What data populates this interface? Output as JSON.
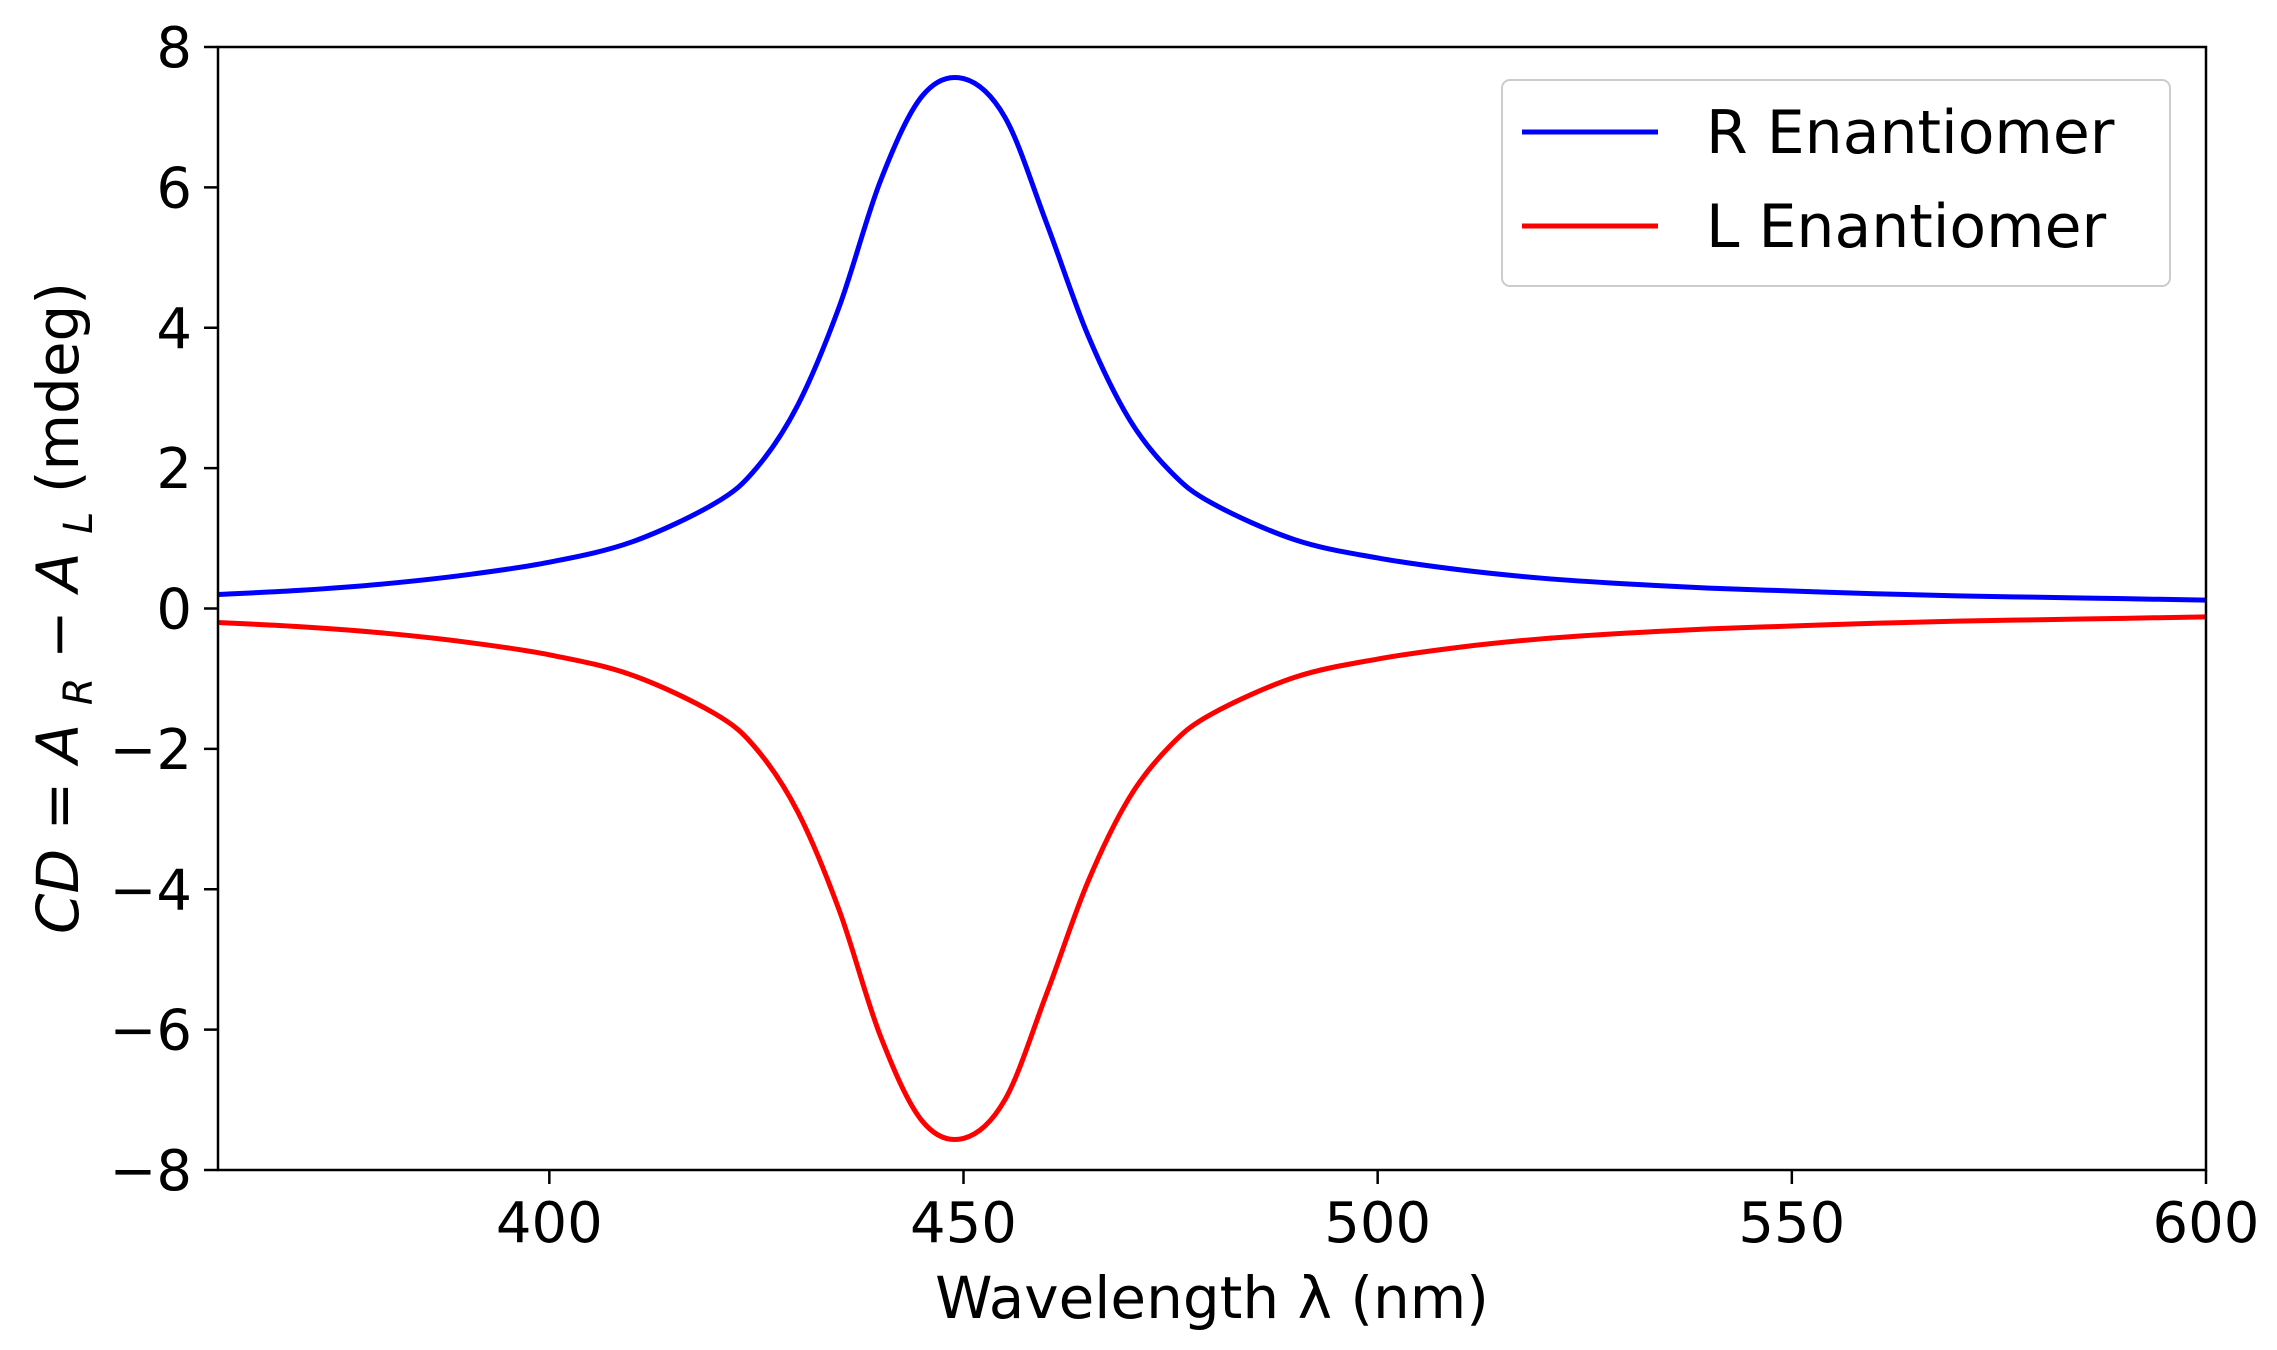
{
  "chart_data": {
    "type": "line",
    "title": "",
    "xlabel": "Wavelength λ (nm)",
    "ylabel": {
      "cd": "CD",
      "eq": " = ",
      "a1": "A",
      "sub1": "R",
      "minus": " − ",
      "a2": "A",
      "sub2": "L",
      "unit": " (mdeg)"
    },
    "xlim": [
      360,
      600
    ],
    "ylim": [
      -8,
      8
    ],
    "xticks": [
      400,
      450,
      500,
      550,
      600
    ],
    "xtick_labels": [
      "400",
      "450",
      "500",
      "550",
      "600"
    ],
    "yticks": [
      -8,
      -6,
      -4,
      -2,
      0,
      2,
      4,
      6,
      8
    ],
    "ytick_labels": [
      "−8",
      "−6",
      "−4",
      "−2",
      "0",
      "2",
      "4",
      "6",
      "8"
    ],
    "grid": false,
    "legend_position": "top-right",
    "series": [
      {
        "name": "R Enantiomer",
        "color": "#0000ff",
        "x": [
          360,
          370,
          380,
          390,
          400,
          410,
          420,
          425,
          430,
          435,
          440,
          445,
          450,
          455,
          460,
          465,
          470,
          475,
          480,
          490,
          500,
          510,
          520,
          530,
          540,
          550,
          560,
          570,
          580,
          590,
          600
        ],
        "values": [
          0.2,
          0.26,
          0.35,
          0.48,
          0.66,
          0.95,
          1.5,
          2.0,
          2.9,
          4.3,
          6.1,
          7.3,
          7.55,
          7.0,
          5.5,
          3.9,
          2.7,
          1.95,
          1.5,
          0.98,
          0.72,
          0.55,
          0.43,
          0.35,
          0.29,
          0.25,
          0.21,
          0.18,
          0.16,
          0.14,
          0.12
        ]
      },
      {
        "name": "L Enantiomer",
        "color": "#ff0000",
        "x": [
          360,
          370,
          380,
          390,
          400,
          410,
          420,
          425,
          430,
          435,
          440,
          445,
          450,
          455,
          460,
          465,
          470,
          475,
          480,
          490,
          500,
          510,
          520,
          530,
          540,
          550,
          560,
          570,
          580,
          590,
          600
        ],
        "values": [
          -0.2,
          -0.26,
          -0.35,
          -0.48,
          -0.66,
          -0.95,
          -1.5,
          -2.0,
          -2.9,
          -4.3,
          -6.1,
          -7.3,
          -7.55,
          -7.0,
          -5.5,
          -3.9,
          -2.7,
          -1.95,
          -1.5,
          -0.98,
          -0.72,
          -0.55,
          -0.43,
          -0.35,
          -0.29,
          -0.25,
          -0.21,
          -0.18,
          -0.16,
          -0.14,
          -0.12
        ]
      }
    ]
  }
}
